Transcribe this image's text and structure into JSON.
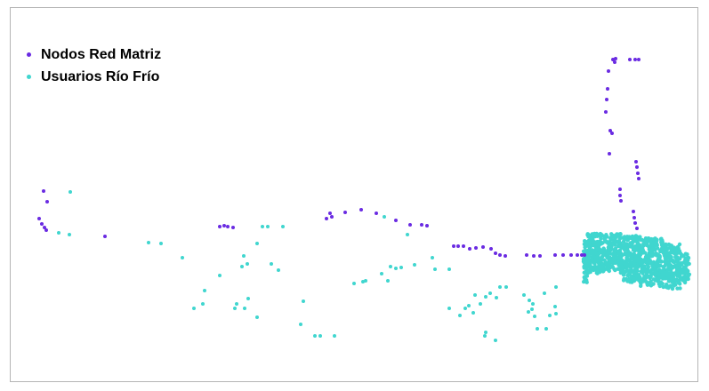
{
  "chart_data": {
    "type": "scatter",
    "title": "",
    "xlabel": "",
    "ylabel": "",
    "grid": false,
    "legend_position": "top-left",
    "series": [
      {
        "name": "Nodos Red Matriz",
        "color": "#6a2be2",
        "points": [
          [
            49,
            215
          ],
          [
            53,
            227
          ],
          [
            44,
            246
          ],
          [
            47,
            252
          ],
          [
            50,
            256
          ],
          [
            52,
            259
          ],
          [
            118,
            266
          ],
          [
            247,
            255
          ],
          [
            252,
            254
          ],
          [
            256,
            255
          ],
          [
            262,
            256
          ],
          [
            367,
            246
          ],
          [
            373,
            244
          ],
          [
            371,
            240
          ],
          [
            388,
            239
          ],
          [
            406,
            236
          ],
          [
            423,
            240
          ],
          [
            445,
            248
          ],
          [
            461,
            253
          ],
          [
            474,
            253
          ],
          [
            480,
            254
          ],
          [
            510,
            277
          ],
          [
            515,
            277
          ],
          [
            521,
            277
          ],
          [
            528,
            280
          ],
          [
            535,
            279
          ],
          [
            543,
            278
          ],
          [
            552,
            280
          ],
          [
            557,
            285
          ],
          [
            562,
            287
          ],
          [
            568,
            288
          ],
          [
            592,
            287
          ],
          [
            600,
            288
          ],
          [
            607,
            288
          ],
          [
            624,
            287
          ],
          [
            633,
            287
          ],
          [
            642,
            287
          ],
          [
            649,
            287
          ],
          [
            654,
            287
          ],
          [
            657,
            287
          ],
          [
            689,
            67
          ],
          [
            691,
            70
          ],
          [
            692,
            66
          ],
          [
            708,
            67
          ],
          [
            714,
            67
          ],
          [
            718,
            67
          ],
          [
            684,
            80
          ],
          [
            683,
            100
          ],
          [
            682,
            112
          ],
          [
            681,
            126
          ],
          [
            686,
            147
          ],
          [
            688,
            150
          ],
          [
            685,
            173
          ],
          [
            715,
            182
          ],
          [
            716,
            188
          ],
          [
            717,
            195
          ],
          [
            718,
            201
          ],
          [
            697,
            213
          ],
          [
            697,
            220
          ],
          [
            698,
            226
          ],
          [
            712,
            238
          ],
          [
            713,
            245
          ],
          [
            714,
            251
          ],
          [
            716,
            257
          ]
        ]
      },
      {
        "name": "Usuarios Río Frío",
        "color": "#40d6cf",
        "points": [
          [
            79,
            216
          ],
          [
            66,
            262
          ],
          [
            78,
            264
          ],
          [
            167,
            273
          ],
          [
            181,
            274
          ],
          [
            205,
            290
          ],
          [
            247,
            310
          ],
          [
            230,
            327
          ],
          [
            228,
            342
          ],
          [
            218,
            347
          ],
          [
            264,
            347
          ],
          [
            275,
            347
          ],
          [
            266,
            342
          ],
          [
            279,
            336
          ],
          [
            289,
            357
          ],
          [
            274,
            288
          ],
          [
            278,
            297
          ],
          [
            289,
            274
          ],
          [
            295,
            255
          ],
          [
            301,
            255
          ],
          [
            305,
            297
          ],
          [
            313,
            304
          ],
          [
            318,
            255
          ],
          [
            272,
            300
          ],
          [
            341,
            339
          ],
          [
            338,
            365
          ],
          [
            354,
            378
          ],
          [
            360,
            378
          ],
          [
            376,
            378
          ],
          [
            398,
            319
          ],
          [
            408,
            317
          ],
          [
            411,
            316
          ],
          [
            429,
            308
          ],
          [
            439,
            300
          ],
          [
            436,
            316
          ],
          [
            445,
            302
          ],
          [
            451,
            301
          ],
          [
            466,
            298
          ],
          [
            458,
            264
          ],
          [
            432,
            244
          ],
          [
            486,
            290
          ],
          [
            489,
            303
          ],
          [
            505,
            303
          ],
          [
            505,
            347
          ],
          [
            523,
            347
          ],
          [
            517,
            355
          ],
          [
            532,
            352
          ],
          [
            527,
            344
          ],
          [
            534,
            332
          ],
          [
            540,
            342
          ],
          [
            546,
            334
          ],
          [
            551,
            330
          ],
          [
            562,
            323
          ],
          [
            569,
            323
          ],
          [
            558,
            335
          ],
          [
            546,
            374
          ],
          [
            557,
            383
          ],
          [
            545,
            378
          ],
          [
            589,
            332
          ],
          [
            594,
            351
          ],
          [
            598,
            348
          ],
          [
            601,
            356
          ],
          [
            604,
            370
          ],
          [
            614,
            370
          ],
          [
            618,
            355
          ],
          [
            624,
            345
          ],
          [
            625,
            353
          ],
          [
            625,
            323
          ],
          [
            612,
            330
          ],
          [
            599,
            342
          ],
          [
            595,
            338
          ]
        ]
      },
      {
        "name": "",
        "color": "#40d6cf",
        "region": [
          [
            656,
            262
          ],
          [
            775,
            328
          ]
        ],
        "note": "dense cluster"
      }
    ]
  }
}
